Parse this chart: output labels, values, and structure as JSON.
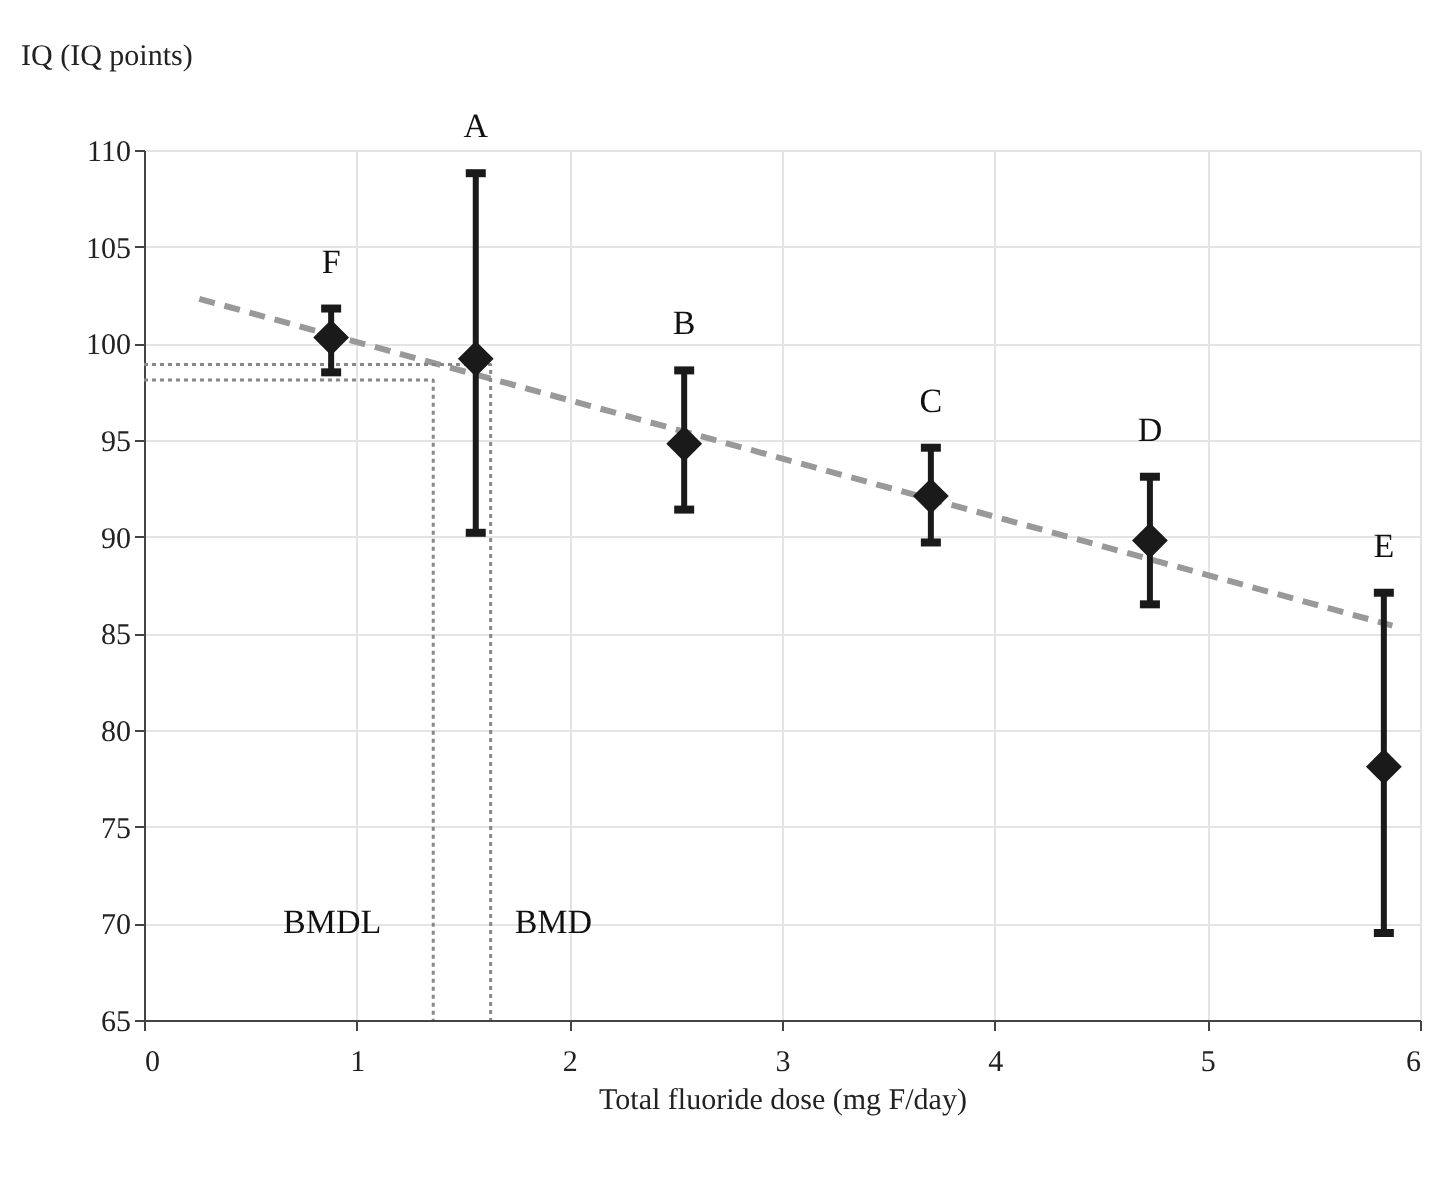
{
  "chart_data": {
    "type": "scatter",
    "xlabel": "Total fluoride dose (mg F/day)",
    "ylabel": "IQ (IQ points)",
    "xlim": [
      0,
      6
    ],
    "xticks": [
      0,
      1,
      2,
      3,
      4,
      5,
      6
    ],
    "ylim": [
      65,
      110
    ],
    "yticks": [
      65,
      70,
      75,
      80,
      85,
      90,
      95,
      100,
      105,
      110
    ],
    "grid": true,
    "series": [
      {
        "color": "#1a1a1a",
        "marker": "diamond",
        "x": [
          0.88,
          1.56,
          2.54,
          3.7,
          4.73,
          5.83
        ],
        "values": [
          100.3,
          99.2,
          94.8,
          92.1,
          89.8,
          78.1
        ],
        "errors": [
          [
            98.5,
            101.8
          ],
          [
            90.2,
            108.8
          ],
          [
            91.4,
            98.6
          ],
          [
            89.7,
            94.6
          ],
          [
            86.5,
            93.1
          ],
          [
            69.5,
            87.1
          ]
        ]
      },
      {
        "type": "line",
        "color": "#999999",
        "line_style": "dashed",
        "x": [
          0.26,
          5.87
        ],
        "values": [
          102.3,
          85.4
        ]
      },
      {
        "type": "line",
        "color": "#888888",
        "line_style": "dotted",
        "x": [
          0,
          1.36,
          1.36
        ],
        "values": [
          98.1,
          98.1,
          65
        ]
      },
      {
        "type": "line",
        "color": "#888888",
        "line_style": "dotted",
        "x": [
          0,
          1.63,
          1.63
        ],
        "values": [
          98.9,
          98.9,
          65
        ]
      }
    ],
    "annotations": [
      {
        "text": "F",
        "x": 0.88,
        "y": 101.8
      },
      {
        "text": "A",
        "x": 1.56,
        "y": 108.8
      },
      {
        "text": "B",
        "x": 2.54,
        "y": 98.6
      },
      {
        "text": "C",
        "x": 3.7,
        "y": 94.6
      },
      {
        "text": "D",
        "x": 4.73,
        "y": 93.1
      },
      {
        "text": "E",
        "x": 5.83,
        "y": 87.1
      },
      {
        "text": "BMDL",
        "x": 1.36,
        "y": 70
      },
      {
        "text": "BMD",
        "x": 1.63,
        "y": 70
      }
    ]
  }
}
